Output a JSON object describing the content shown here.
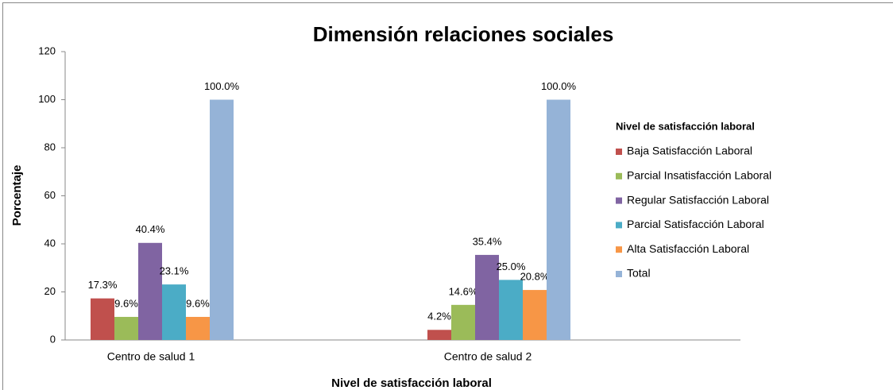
{
  "chart_data": {
    "type": "bar",
    "title": "Dimensión relaciones sociales",
    "x_label": "Nivel de satisfacción laboral",
    "y_label": "Porcentaje",
    "legend_title": "Nivel de satisfacción  laboral",
    "legend": "right",
    "categories": [
      "Centro de salud 1",
      "Centro de salud 2"
    ],
    "series": [
      {
        "name": "Baja Satisfacción Laboral",
        "color": "#c0504d",
        "values": [
          17.3,
          4.2
        ],
        "value_labels": [
          "17.3%",
          "4.2%"
        ]
      },
      {
        "name": "Parcial Insatisfacción Laboral",
        "color": "#9bbb59",
        "values": [
          9.6,
          14.6
        ],
        "value_labels": [
          "9.6%",
          "14.6%"
        ]
      },
      {
        "name": "Regular Satisfacción Laboral",
        "color": "#8064a2",
        "values": [
          40.4,
          35.4
        ],
        "value_labels": [
          "40.4%",
          "35.4%"
        ]
      },
      {
        "name": "Parcial Satisfacción Laboral",
        "color": "#4bacc6",
        "values": [
          23.1,
          25.0
        ],
        "value_labels": [
          "23.1%",
          "25.0%"
        ]
      },
      {
        "name": "Alta Satisfacción Laboral",
        "color": "#f79646",
        "values": [
          9.6,
          20.8
        ],
        "value_labels": [
          "9.6%",
          "20.8%"
        ]
      },
      {
        "name": "Total",
        "color": "#95b3d7",
        "values": [
          100,
          100
        ],
        "value_labels": [
          "100.0%",
          "100.0%"
        ]
      }
    ],
    "ylim": [
      0,
      120
    ],
    "yticks": [
      0,
      20,
      40,
      60,
      80,
      100,
      120
    ],
    "grid": false
  }
}
